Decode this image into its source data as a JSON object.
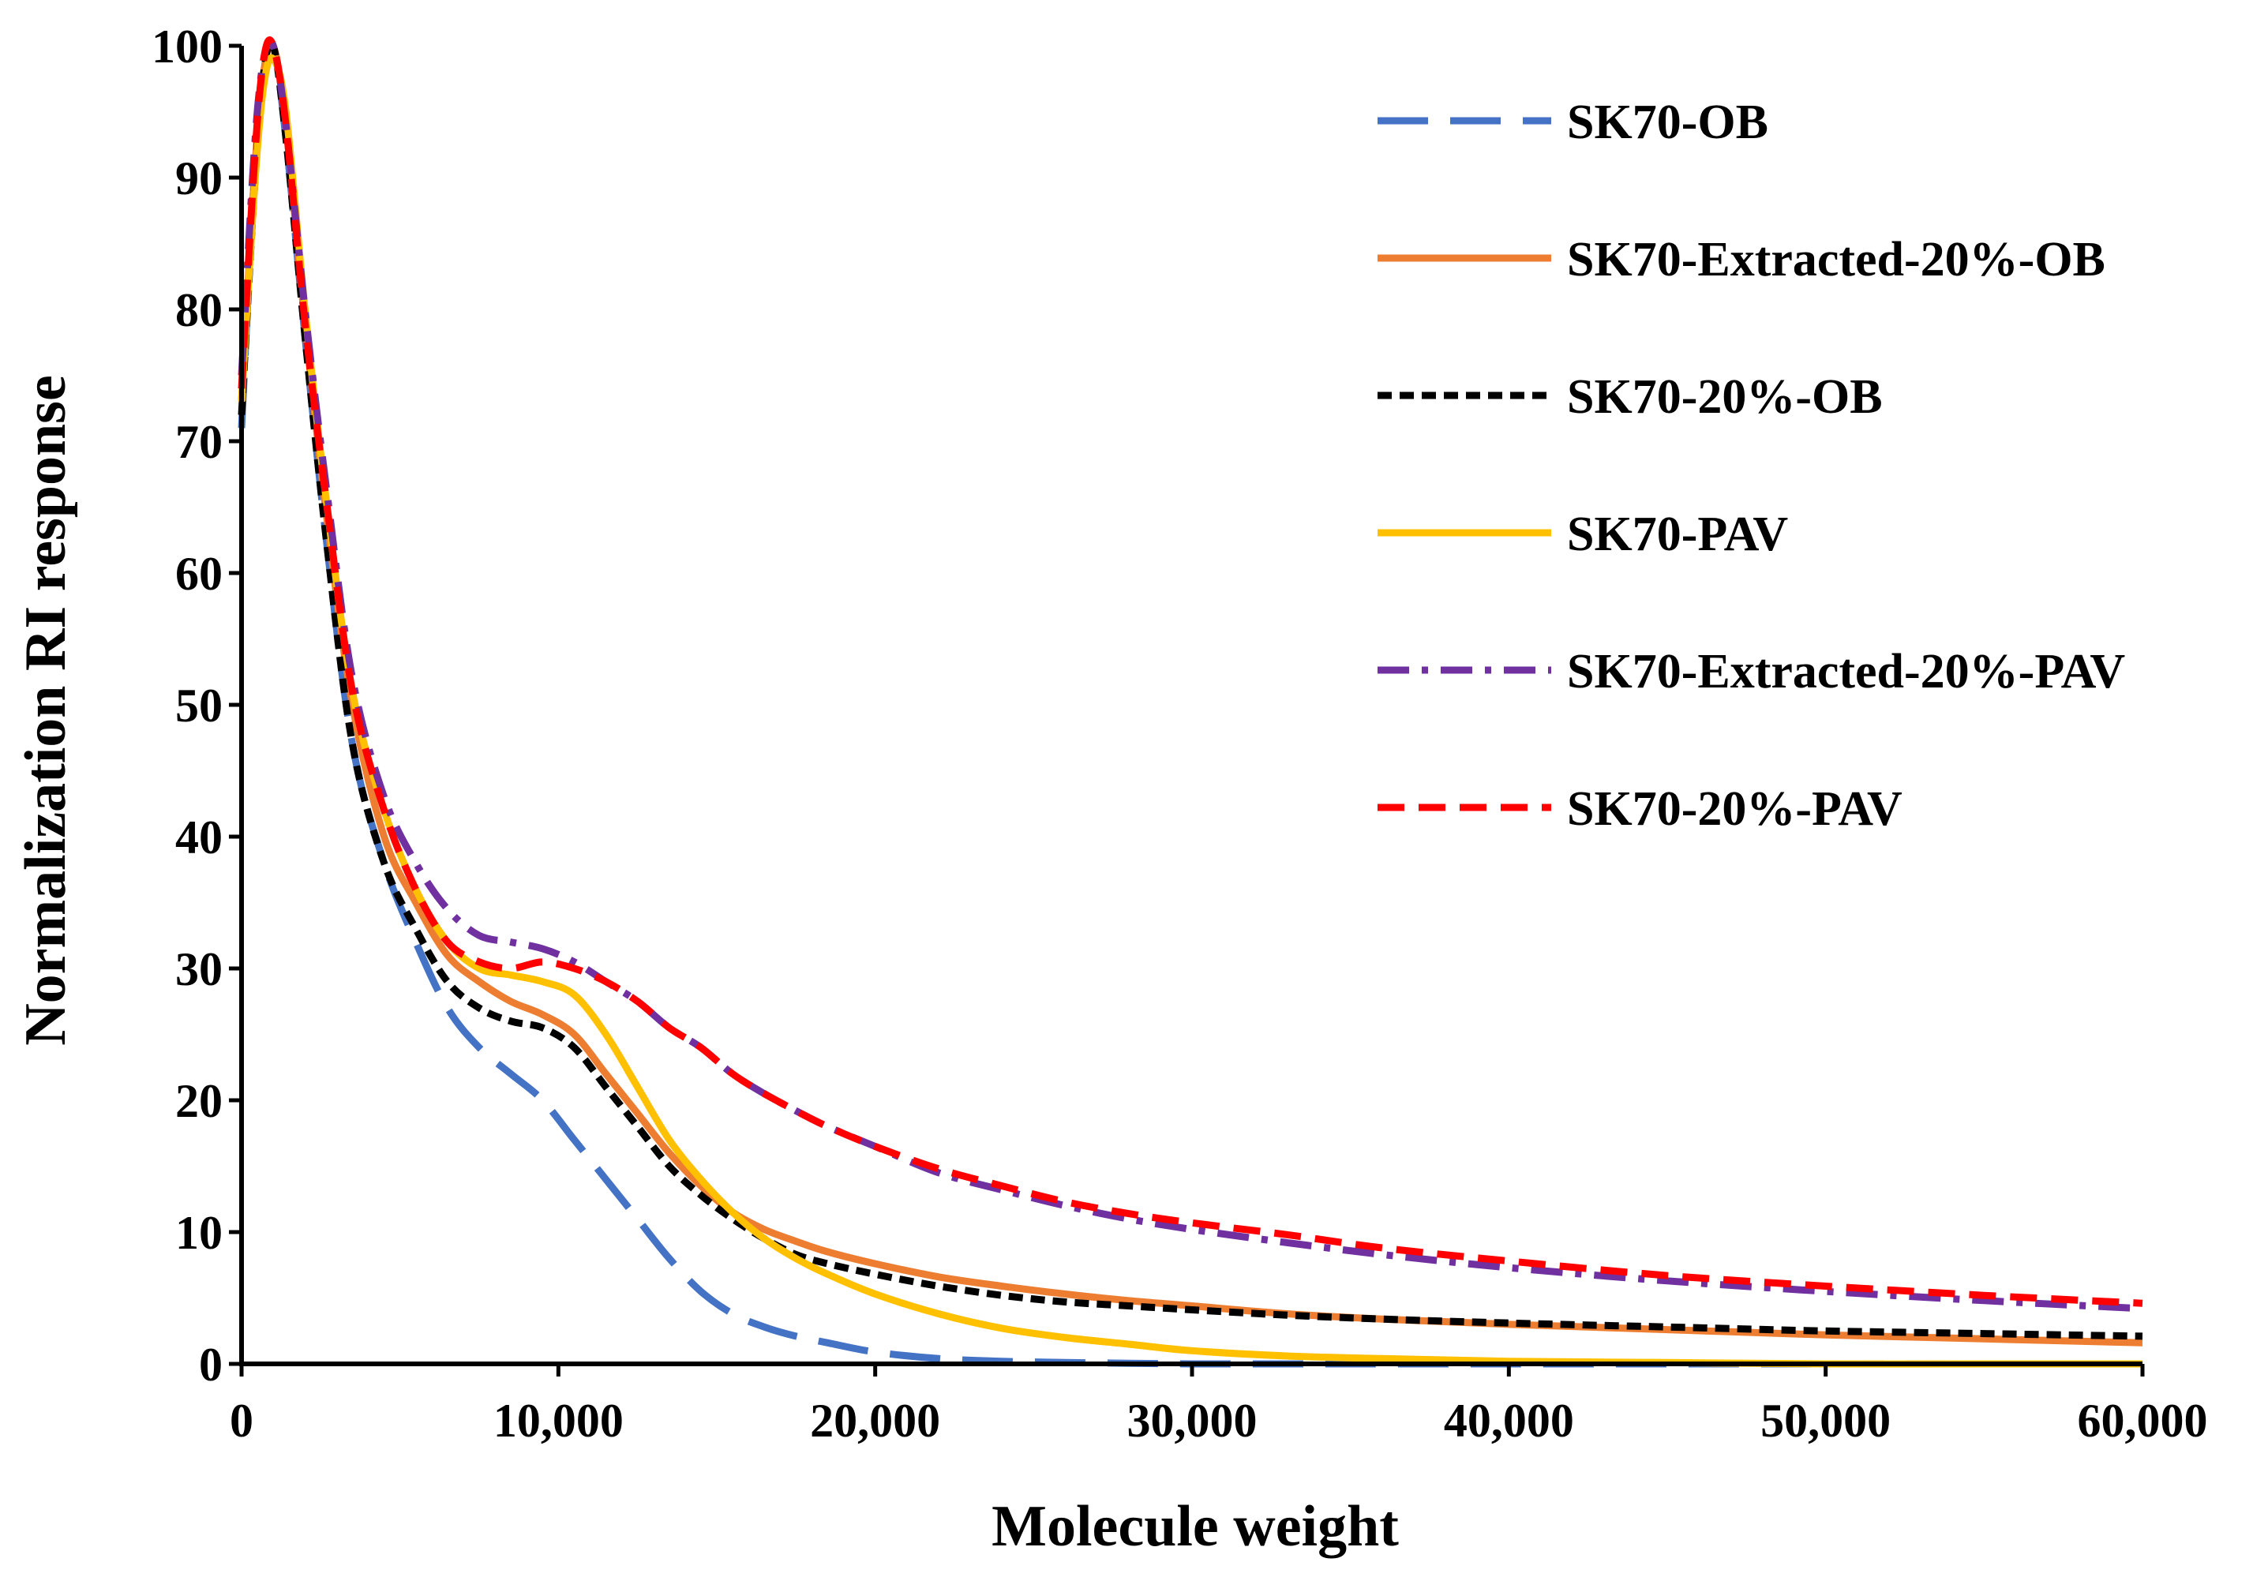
{
  "chart_data": {
    "type": "line",
    "title": "",
    "xlabel": "Molecule weight",
    "ylabel": "Normalization RI response",
    "xlim": [
      0,
      60000
    ],
    "ylim": [
      0,
      100
    ],
    "x_ticks": [
      0,
      10000,
      20000,
      30000,
      40000,
      50000,
      60000
    ],
    "x_tick_labels": [
      "0",
      "10,000",
      "20,000",
      "30,000",
      "40,000",
      "50,000",
      "60,000"
    ],
    "y_ticks": [
      0,
      10,
      20,
      30,
      40,
      50,
      60,
      70,
      80,
      90,
      100
    ],
    "y_tick_labels": [
      "0",
      "10",
      "20",
      "30",
      "40",
      "50",
      "60",
      "70",
      "80",
      "90",
      "100"
    ],
    "grid": false,
    "legend_position": "top-right",
    "x": [
      0,
      400,
      700,
      1000,
      1400,
      2000,
      2700,
      3500,
      4500,
      5500,
      6500,
      7500,
      8500,
      9500,
      10500,
      11500,
      12500,
      13500,
      14500,
      15500,
      16500,
      17500,
      18500,
      20000,
      22000,
      24000,
      26000,
      28000,
      30000,
      33000,
      36000,
      40000,
      45000,
      50000,
      55000,
      60000
    ],
    "series": [
      {
        "name": "SK70-OB",
        "color": "#4472C4",
        "style": "long-dash",
        "values": [
          71,
          90,
          98,
          100,
          93,
          78,
          62,
          47,
          38,
          32,
          27,
          24,
          22,
          20,
          17,
          14,
          11,
          8,
          5.5,
          3.8,
          2.8,
          2.1,
          1.6,
          0.9,
          0.4,
          0.2,
          0.1,
          0.05,
          0,
          0,
          0,
          0,
          0,
          0,
          0,
          0
        ]
      },
      {
        "name": "SK70-Extracted-20%-OB",
        "color": "#ED7D31",
        "style": "solid",
        "values": [
          73,
          90,
          98,
          100,
          94,
          79,
          64,
          50,
          40,
          35,
          31,
          29,
          27.5,
          26.5,
          25,
          22,
          19,
          16,
          13.5,
          11.5,
          10.2,
          9.3,
          8.5,
          7.6,
          6.6,
          5.9,
          5.3,
          4.8,
          4.4,
          3.8,
          3.4,
          3,
          2.6,
          2.2,
          1.9,
          1.6
        ]
      },
      {
        "name": "SK70-20%-OB",
        "color": "#000000",
        "style": "short-dash",
        "values": [
          72,
          89,
          98,
          100,
          93,
          78,
          62,
          47,
          38,
          33,
          29,
          27,
          26,
          25.5,
          24,
          21,
          18,
          15,
          12.8,
          11,
          9.5,
          8.3,
          7.6,
          6.8,
          5.9,
          5.2,
          4.7,
          4.4,
          4.1,
          3.7,
          3.4,
          3.1,
          2.8,
          2.5,
          2.3,
          2.1
        ]
      },
      {
        "name": "SK70-PAV",
        "color": "#FFC000",
        "style": "solid",
        "values": [
          73,
          89,
          97,
          99,
          95,
          80,
          65,
          51,
          42,
          36,
          32,
          30,
          29.5,
          29,
          28,
          25,
          21,
          17,
          14,
          11.5,
          9.5,
          8,
          6.8,
          5.3,
          3.8,
          2.7,
          2,
          1.5,
          1,
          0.6,
          0.4,
          0.2,
          0.1,
          0,
          0,
          0
        ]
      },
      {
        "name": "SK70-Extracted-20%-PAV",
        "color": "#7030A0",
        "style": "dash-dot",
        "values": [
          75,
          92,
          99,
          100,
          94,
          80,
          66,
          52,
          43,
          38,
          34.5,
          32.5,
          32,
          31.5,
          30.5,
          29,
          27.5,
          25.5,
          24,
          22,
          20.5,
          19.2,
          18,
          16.5,
          14.5,
          13.2,
          12,
          11,
          10.2,
          9.2,
          8.3,
          7.3,
          6.3,
          5.5,
          4.8,
          4.2
        ]
      },
      {
        "name": "SK70-20%-PAV",
        "color": "#FF0000",
        "style": "dash",
        "values": [
          74,
          91,
          99,
          100,
          94,
          79,
          65,
          51,
          42,
          36,
          32,
          30.5,
          30,
          30.5,
          30,
          29,
          27.5,
          25.5,
          24,
          22,
          20.5,
          19.2,
          18,
          16.5,
          14.8,
          13.5,
          12.3,
          11.4,
          10.7,
          9.8,
          8.8,
          7.8,
          6.7,
          5.9,
          5.2,
          4.6
        ]
      }
    ]
  }
}
